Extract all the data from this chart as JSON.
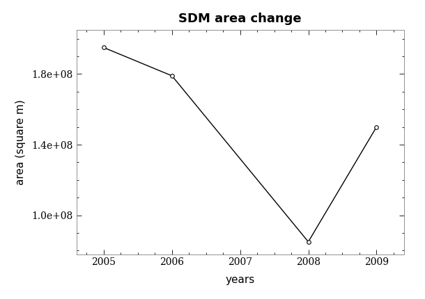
{
  "title": "SDM area change",
  "xlabel": "years",
  "ylabel": "area (square m)",
  "x": [
    2005,
    2006,
    2008,
    2009
  ],
  "y": [
    195000000.0,
    179000000.0,
    85000000.0,
    150000000.0
  ],
  "xlim": [
    2004.6,
    2009.4
  ],
  "ylim": [
    78000000.0,
    205000000.0
  ],
  "yticks": [
    100000000.0,
    140000000.0,
    180000000.0
  ],
  "xticks": [
    2005,
    2006,
    2007,
    2008,
    2009
  ],
  "line_color": "#000000",
  "marker": "o",
  "marker_facecolor": "#ffffff",
  "marker_edgecolor": "#000000",
  "marker_size": 4,
  "line_width": 1.0,
  "title_fontsize": 13,
  "label_fontsize": 11,
  "tick_fontsize": 10,
  "background_color": "#ffffff"
}
